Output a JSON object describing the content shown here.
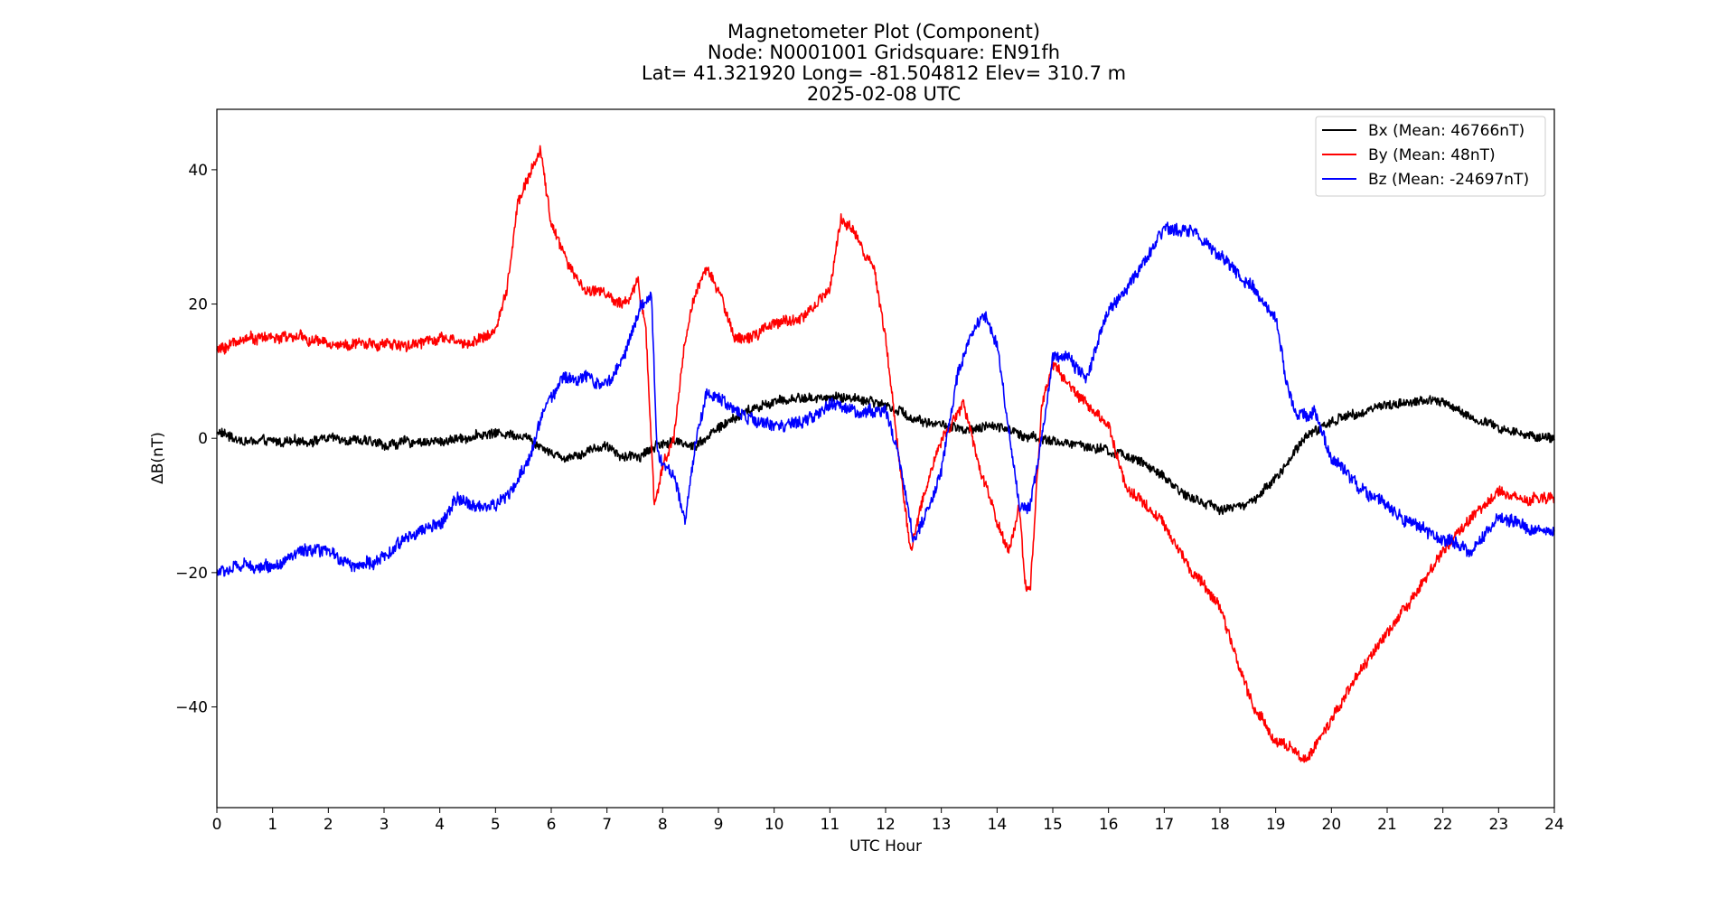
{
  "chart_data": {
    "type": "line",
    "title_lines": [
      "Magnetometer Plot (Component)",
      "Node:  N0001001     Gridsquare:  EN91fh",
      "Lat= 41.321920    Long= -81.504812    Elev= 310.7 m",
      "2025-02-08  UTC"
    ],
    "xlabel": "UTC Hour",
    "ylabel": "ΔB(nT)",
    "xlim": [
      0,
      24
    ],
    "ylim": [
      -55,
      49
    ],
    "xticks": [
      0,
      1,
      2,
      3,
      4,
      5,
      6,
      7,
      8,
      9,
      10,
      11,
      12,
      13,
      14,
      15,
      16,
      17,
      18,
      19,
      20,
      21,
      22,
      23,
      24
    ],
    "yticks": [
      -40,
      -20,
      0,
      20,
      40
    ],
    "ytick_labels": [
      "−40",
      "−20",
      "0",
      "20",
      "40"
    ],
    "grid": false,
    "legend_position": "top-right",
    "series": [
      {
        "name": "Bx (Mean: 46766nT)",
        "color": "#000000",
        "x": [
          0,
          0.5,
          1,
          1.5,
          2,
          2.5,
          3,
          3.5,
          4,
          4.5,
          5,
          5.5,
          5.8,
          6.2,
          6.6,
          7,
          7.3,
          7.6,
          7.9,
          8.2,
          8.6,
          9,
          9.5,
          10,
          10.5,
          11,
          11.5,
          12,
          12.5,
          13,
          13.5,
          14,
          14.5,
          15,
          15.5,
          16,
          16.5,
          17,
          17.5,
          18,
          18.5,
          19,
          19.5,
          20,
          20.5,
          21,
          21.5,
          22,
          22.5,
          23,
          23.5,
          24
        ],
        "y": [
          1,
          -0.5,
          -0.5,
          -0.5,
          0,
          -0.2,
          -1,
          -0.5,
          -0.5,
          0.2,
          0.8,
          0.5,
          -1,
          -3,
          -2,
          -1,
          -3,
          -2.5,
          -1,
          -0.5,
          -1,
          1.5,
          4,
          5.5,
          6,
          6,
          6,
          5,
          3,
          2,
          1,
          2,
          0.5,
          -0.5,
          -1,
          -2,
          -3,
          -6,
          -9,
          -10.5,
          -10,
          -6,
          0,
          2.5,
          4,
          5,
          5.5,
          5.5,
          3,
          1.5,
          0.5,
          0
        ]
      },
      {
        "name": "By (Mean: 48nT)",
        "color": "#ff0000",
        "x": [
          0,
          0.5,
          1,
          1.5,
          2,
          2.5,
          3,
          3.5,
          4,
          4.5,
          5,
          5.2,
          5.4,
          5.6,
          5.8,
          6,
          6.3,
          6.6,
          6.9,
          7.2,
          7.4,
          7.55,
          7.7,
          7.85,
          8,
          8.2,
          8.4,
          8.6,
          8.8,
          9,
          9.3,
          9.6,
          10,
          10.5,
          11,
          11.2,
          11.5,
          11.8,
          12,
          12.2,
          12.45,
          12.7,
          13,
          13.4,
          13.7,
          14,
          14.2,
          14.4,
          14.5,
          14.6,
          14.8,
          15,
          15.3,
          15.6,
          16,
          16.3,
          16.7,
          17,
          17.5,
          18,
          18.3,
          18.6,
          19,
          19.3,
          19.45,
          19.7,
          20,
          20.5,
          21,
          21.5,
          22,
          22.5,
          23,
          23.5,
          24
        ],
        "y": [
          13,
          15,
          15,
          15,
          14,
          14,
          14,
          14,
          15,
          14,
          16,
          22,
          35,
          39,
          43,
          32,
          26,
          22,
          22,
          20,
          20,
          24,
          16,
          -10,
          -4,
          0,
          15,
          22,
          25,
          22,
          15,
          15,
          17,
          18,
          22,
          33,
          30,
          25,
          15,
          0,
          -17,
          -8,
          0,
          5,
          -5,
          -12,
          -17,
          -10,
          -22,
          -22,
          5,
          11,
          8,
          5,
          2,
          -7,
          -10,
          -13,
          -20,
          -25,
          -33,
          -40,
          -45,
          -46,
          -48,
          -46,
          -42,
          -35,
          -29,
          -23,
          -17,
          -12,
          -8,
          -9,
          -9
        ]
      },
      {
        "name": "Bz (Mean: -24697nT)",
        "color": "#0000ff",
        "x": [
          0,
          0.5,
          1,
          1.5,
          2,
          2.5,
          3,
          3.5,
          4,
          4.3,
          4.6,
          5,
          5.3,
          5.6,
          5.9,
          6.2,
          6.6,
          7,
          7.3,
          7.6,
          7.8,
          7.9,
          8.2,
          8.4,
          8.6,
          8.8,
          9,
          9.5,
          10,
          10.5,
          11,
          11.5,
          12,
          12.2,
          12.5,
          12.8,
          13,
          13.3,
          13.6,
          13.8,
          14,
          14.2,
          14.4,
          14.6,
          14.8,
          15,
          15.3,
          15.6,
          16,
          16.5,
          17,
          17.5,
          18,
          18.5,
          19,
          19.2,
          19.4,
          19.7,
          20,
          20.5,
          21,
          21.5,
          22,
          22.3,
          22.5,
          23,
          23.5,
          24
        ],
        "y": [
          -20,
          -19,
          -19,
          -17,
          -17,
          -19,
          -18,
          -14,
          -13,
          -9,
          -10,
          -10,
          -8,
          -3,
          5,
          9,
          9,
          8,
          12,
          20,
          21,
          -2,
          -6,
          -12,
          0,
          7,
          6,
          3,
          2,
          2,
          5,
          4,
          4,
          -1,
          -15,
          -10,
          -5,
          10,
          17,
          18,
          14,
          2,
          -10,
          -10,
          0,
          12,
          12,
          9,
          19,
          24,
          31,
          31,
          27,
          23,
          18,
          8,
          3,
          4,
          -3,
          -7,
          -10,
          -13,
          -15,
          -16,
          -17,
          -12,
          -13,
          -14
        ]
      }
    ]
  }
}
